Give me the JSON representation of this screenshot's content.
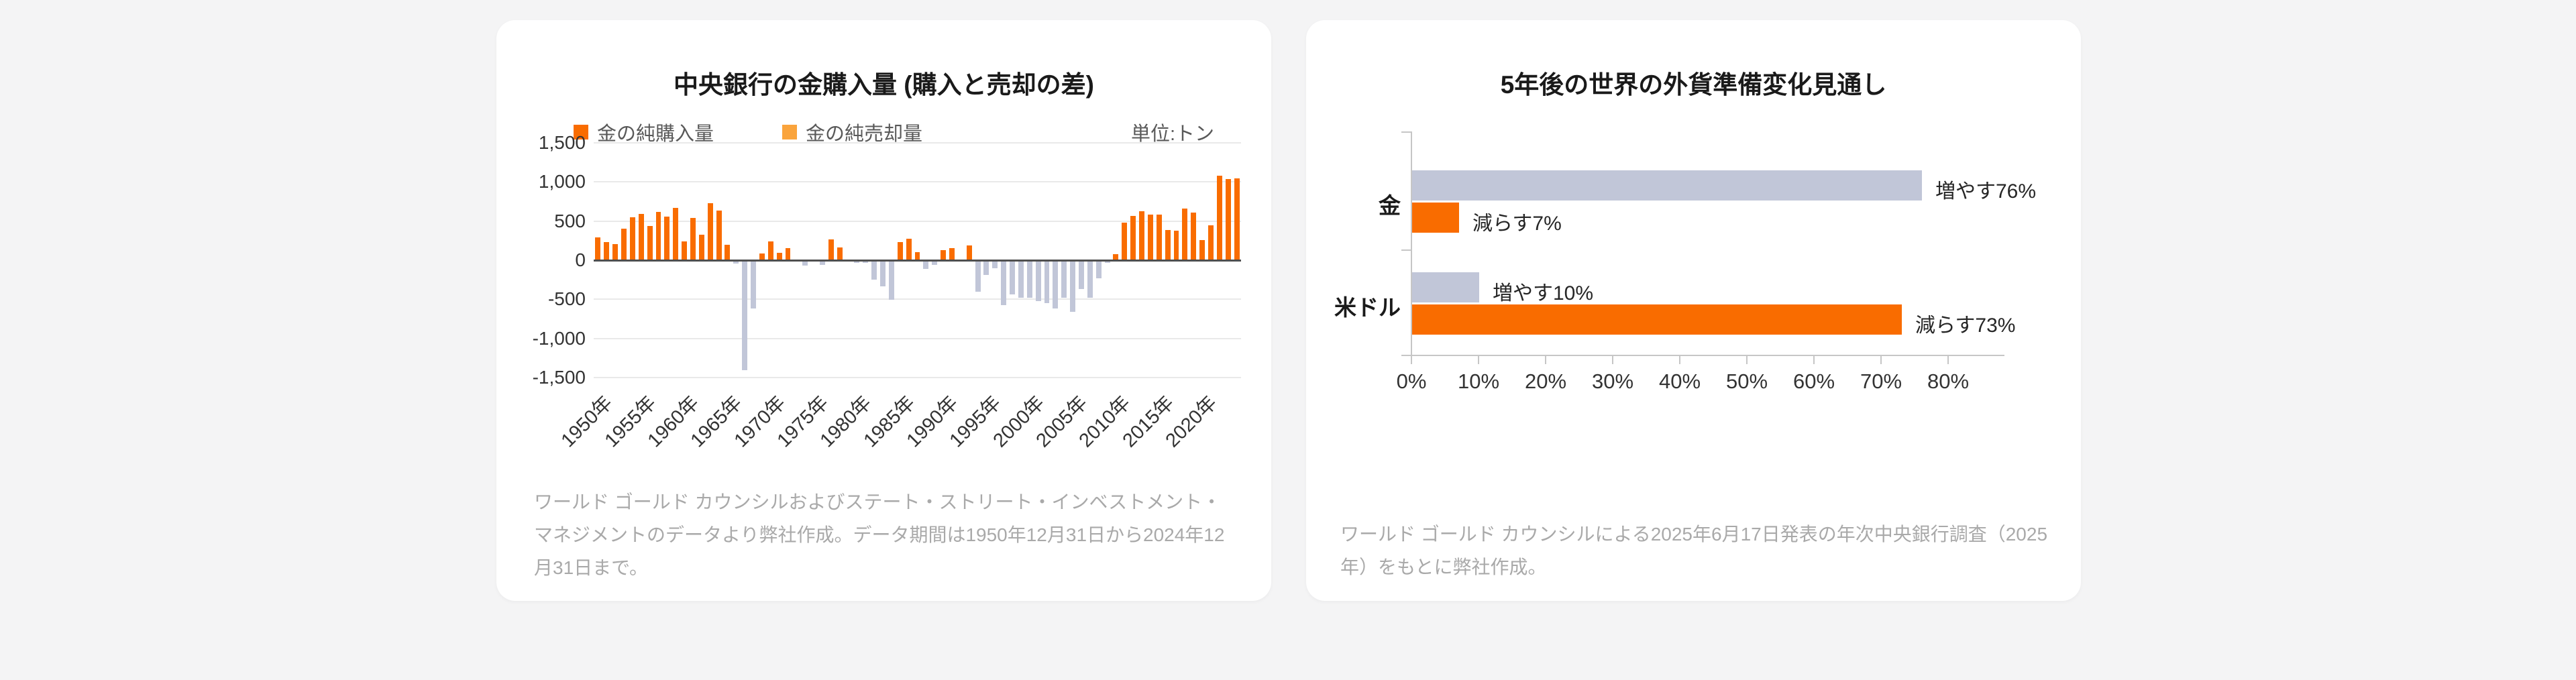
{
  "page": {
    "background": "#f4f4f5"
  },
  "left_card": {
    "title": "中央銀行の金購入量 (購入と売却の差)",
    "legend": [
      {
        "label": "金の純購入量",
        "color": "#f96c00"
      },
      {
        "label": "金の純売却量",
        "color": "#faa43c"
      }
    ],
    "unit_label": "単位:トン",
    "footnote": "ワールド ゴールド カウンシルおよびステート・ストリート・インベストメント・マネジメントのデータより弊社作成。データ期間は1950年12月31日から2024年12月31日まで。"
  },
  "right_card": {
    "title": "5年後の世界の外貨準備変化見通し",
    "footnote": "ワールド ゴールド カウンシルによる2025年6月17日発表の年次中央銀行調査（2025年）をもとに弊社作成。"
  },
  "chart_data": [
    {
      "type": "bar",
      "title": "中央銀行の金購入量 (購入と売却の差)",
      "unit": "単位:トン",
      "legend": [
        "金の純購入量",
        "金の純売却量"
      ],
      "start_year": 1950,
      "end_year": 2024,
      "values": [
        288,
        235,
        205,
        404,
        548,
        591,
        435,
        614,
        561,
        671,
        240,
        538,
        329,
        729,
        631,
        196,
        -45,
        -1404,
        -620,
        90,
        236,
        96,
        151,
        6,
        -69,
        9,
        -58,
        269,
        162,
        -9,
        -30,
        -36,
        -247,
        -330,
        -508,
        233,
        275,
        102,
        -110,
        -63,
        132,
        155,
        -15,
        190,
        -400,
        -185,
        -100,
        -575,
        -440,
        -477,
        -479,
        -520,
        -547,
        -620,
        -479,
        -663,
        -365,
        -484,
        -235,
        -34,
        79,
        481,
        569,
        629,
        584,
        580,
        390,
        379,
        656,
        605,
        255,
        450,
        1082,
        1037,
        1045
      ],
      "colors": {
        "positive": "#f96c00",
        "negative": "#c1c6d8"
      },
      "ylim": [
        -1500,
        1500
      ],
      "ytick_labels": [
        "1,500",
        "1,000",
        "500",
        "0",
        "-500",
        "-1,000",
        "-1,500"
      ],
      "ytick_values": [
        1500,
        1000,
        500,
        0,
        -500,
        -1000,
        -1500
      ],
      "xtick_labels": [
        "1950年",
        "1955年",
        "1960年",
        "1965年",
        "1970年",
        "1975年",
        "1980年",
        "1985年",
        "1990年",
        "1995年",
        "2000年",
        "2005年",
        "2010年",
        "2015年",
        "2020年"
      ],
      "grid": true,
      "legend_position": "top"
    },
    {
      "type": "bar-horizontal",
      "title": "5年後の世界の外貨準備変化見通し",
      "categories": [
        "金",
        "米ドル"
      ],
      "series": [
        {
          "name": "増やす",
          "color": "#c1c6d8",
          "values": [
            76,
            10
          ]
        },
        {
          "name": "減らす",
          "color": "#f96c00",
          "values": [
            7,
            73
          ]
        }
      ],
      "bar_labels": [
        [
          "増やす76%",
          "減らす7%"
        ],
        [
          "増やす10%",
          "減らす73%"
        ]
      ],
      "xtick_labels": [
        "0%",
        "10%",
        "20%",
        "30%",
        "40%",
        "50%",
        "60%",
        "70%",
        "80%"
      ],
      "xtick_values": [
        0,
        10,
        20,
        30,
        40,
        50,
        60,
        70,
        80
      ],
      "xlim": [
        0,
        88
      ],
      "grid": false
    }
  ]
}
